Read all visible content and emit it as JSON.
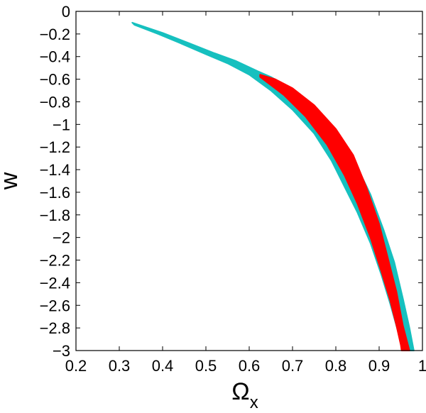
{
  "chart_data": {
    "type": "area",
    "title": "",
    "xlabel": "Ω",
    "xlabel_subscript": "x",
    "ylabel": "w",
    "xlim": [
      0.2,
      1.0
    ],
    "ylim": [
      -3.0,
      0.0
    ],
    "x_ticks": [
      0.2,
      0.3,
      0.4,
      0.5,
      0.6,
      0.7,
      0.8,
      0.9,
      1.0
    ],
    "x_tick_labels": [
      "0.2",
      "0.3",
      "0.4",
      "0.5",
      "0.6",
      "0.7",
      "0.8",
      "0.9",
      "1"
    ],
    "y_ticks": [
      0,
      -0.2,
      -0.4,
      -0.6,
      -0.8,
      -1.0,
      -1.2,
      -1.4,
      -1.6,
      -1.8,
      -2.0,
      -2.2,
      -2.4,
      -2.6,
      -2.8,
      -3.0
    ],
    "y_tick_labels": [
      "0",
      "−0.2",
      "−0.4",
      "−0.6",
      "−0.8",
      "−1",
      "−1.2",
      "−1.4",
      "−1.6",
      "−1.8",
      "−2",
      "−2.2",
      "−2.4",
      "−2.6",
      "−2.8",
      "−3"
    ],
    "grid": false,
    "legend": "none",
    "series": [
      {
        "color": "#16c0bf",
        "regions": [
          {
            "upper": [
              [
                0.33,
                -0.1
              ],
              [
                0.4,
                -0.19
              ],
              [
                0.46,
                -0.28
              ],
              [
                0.52,
                -0.37
              ],
              [
                0.57,
                -0.44
              ],
              [
                0.62,
                -0.53
              ],
              [
                0.65,
                -0.58
              ],
              [
                0.7,
                -0.69
              ],
              [
                0.75,
                -0.84
              ],
              [
                0.8,
                -1.06
              ],
              [
                0.84,
                -1.3
              ],
              [
                0.88,
                -1.62
              ],
              [
                0.91,
                -1.93
              ],
              [
                0.935,
                -2.22
              ],
              [
                0.955,
                -2.54
              ],
              [
                0.97,
                -2.8
              ],
              [
                0.98,
                -3.0
              ]
            ],
            "lower": [
              [
                0.335,
                -0.12
              ],
              [
                0.39,
                -0.2
              ],
              [
                0.44,
                -0.28
              ],
              [
                0.5,
                -0.38
              ],
              [
                0.55,
                -0.46
              ],
              [
                0.6,
                -0.56
              ],
              [
                0.65,
                -0.7
              ],
              [
                0.7,
                -0.87
              ],
              [
                0.75,
                -1.08
              ],
              [
                0.79,
                -1.32
              ],
              [
                0.82,
                -1.55
              ],
              [
                0.85,
                -1.78
              ],
              [
                0.88,
                -2.05
              ],
              [
                0.905,
                -2.33
              ],
              [
                0.925,
                -2.58
              ],
              [
                0.945,
                -2.85
              ],
              [
                0.955,
                -3.0
              ]
            ]
          }
        ]
      },
      {
        "color": "#ff0000",
        "regions": [
          {
            "upper": [
              [
                0.625,
                -0.56
              ],
              [
                0.66,
                -0.6
              ],
              [
                0.7,
                -0.68
              ],
              [
                0.75,
                -0.83
              ],
              [
                0.8,
                -1.04
              ],
              [
                0.84,
                -1.27
              ],
              [
                0.87,
                -1.55
              ],
              [
                0.9,
                -1.88
              ],
              [
                0.92,
                -2.18
              ],
              [
                0.94,
                -2.48
              ],
              [
                0.955,
                -2.78
              ],
              [
                0.97,
                -3.0
              ]
            ],
            "lower": [
              [
                0.625,
                -0.58
              ],
              [
                0.68,
                -0.74
              ],
              [
                0.73,
                -0.93
              ],
              [
                0.78,
                -1.18
              ],
              [
                0.82,
                -1.45
              ],
              [
                0.85,
                -1.7
              ],
              [
                0.88,
                -2.0
              ],
              [
                0.905,
                -2.3
              ],
              [
                0.925,
                -2.55
              ],
              [
                0.94,
                -2.78
              ],
              [
                0.95,
                -2.95
              ],
              [
                0.952,
                -3.0
              ]
            ]
          }
        ]
      }
    ]
  }
}
